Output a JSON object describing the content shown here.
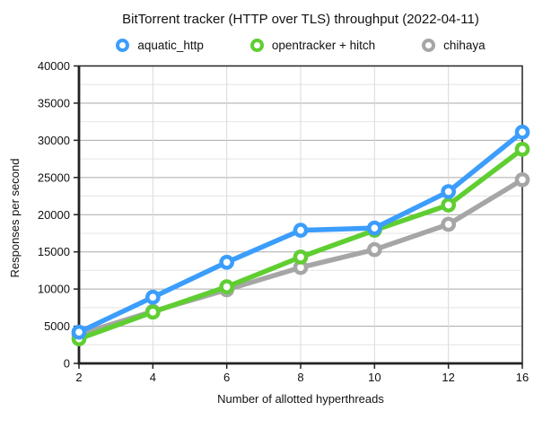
{
  "title": "BitTorrent tracker (HTTP over TLS) throughput (2022-04-11)",
  "chart_data": {
    "type": "line",
    "title": "BitTorrent tracker (HTTP over TLS) throughput (2022-04-11)",
    "categories": [
      2,
      4,
      6,
      8,
      10,
      12,
      16
    ],
    "series": [
      {
        "name": "aquatic_http",
        "color": "#3B9DFC",
        "values": [
          4200,
          8900,
          13600,
          17900,
          18200,
          23100,
          31100
        ]
      },
      {
        "name": "opentracker + hitch",
        "color": "#5FCE31",
        "values": [
          3300,
          6900,
          10300,
          14300,
          17900,
          21300,
          28800
        ]
      },
      {
        "name": "chihaya",
        "color": "#A6A6A6",
        "values": [
          3900,
          7000,
          9900,
          12900,
          15300,
          18700,
          24700
        ]
      }
    ],
    "xlabel": "Number of allotted hyperthreads",
    "ylabel": "Responses per second",
    "ylim": [
      0,
      40000
    ],
    "ytick_step": 5000,
    "yminor_step": 2500,
    "x_tick_labels": [
      "2",
      "4",
      "6",
      "8",
      "10",
      "12",
      "16"
    ],
    "y_tick_labels": [
      "0",
      "5000",
      "10000",
      "15000",
      "20000",
      "25000",
      "30000",
      "35000",
      "40000"
    ],
    "grid": true,
    "legend_position": "top",
    "marker_style": "open-circle",
    "colors": {
      "text": "#111111",
      "axis": "#222222",
      "grid_major": "#aaaaaa",
      "grid_minor": "#e4e4e4",
      "grid_vertical": "#d9d9d9",
      "background": "#ffffff"
    }
  }
}
